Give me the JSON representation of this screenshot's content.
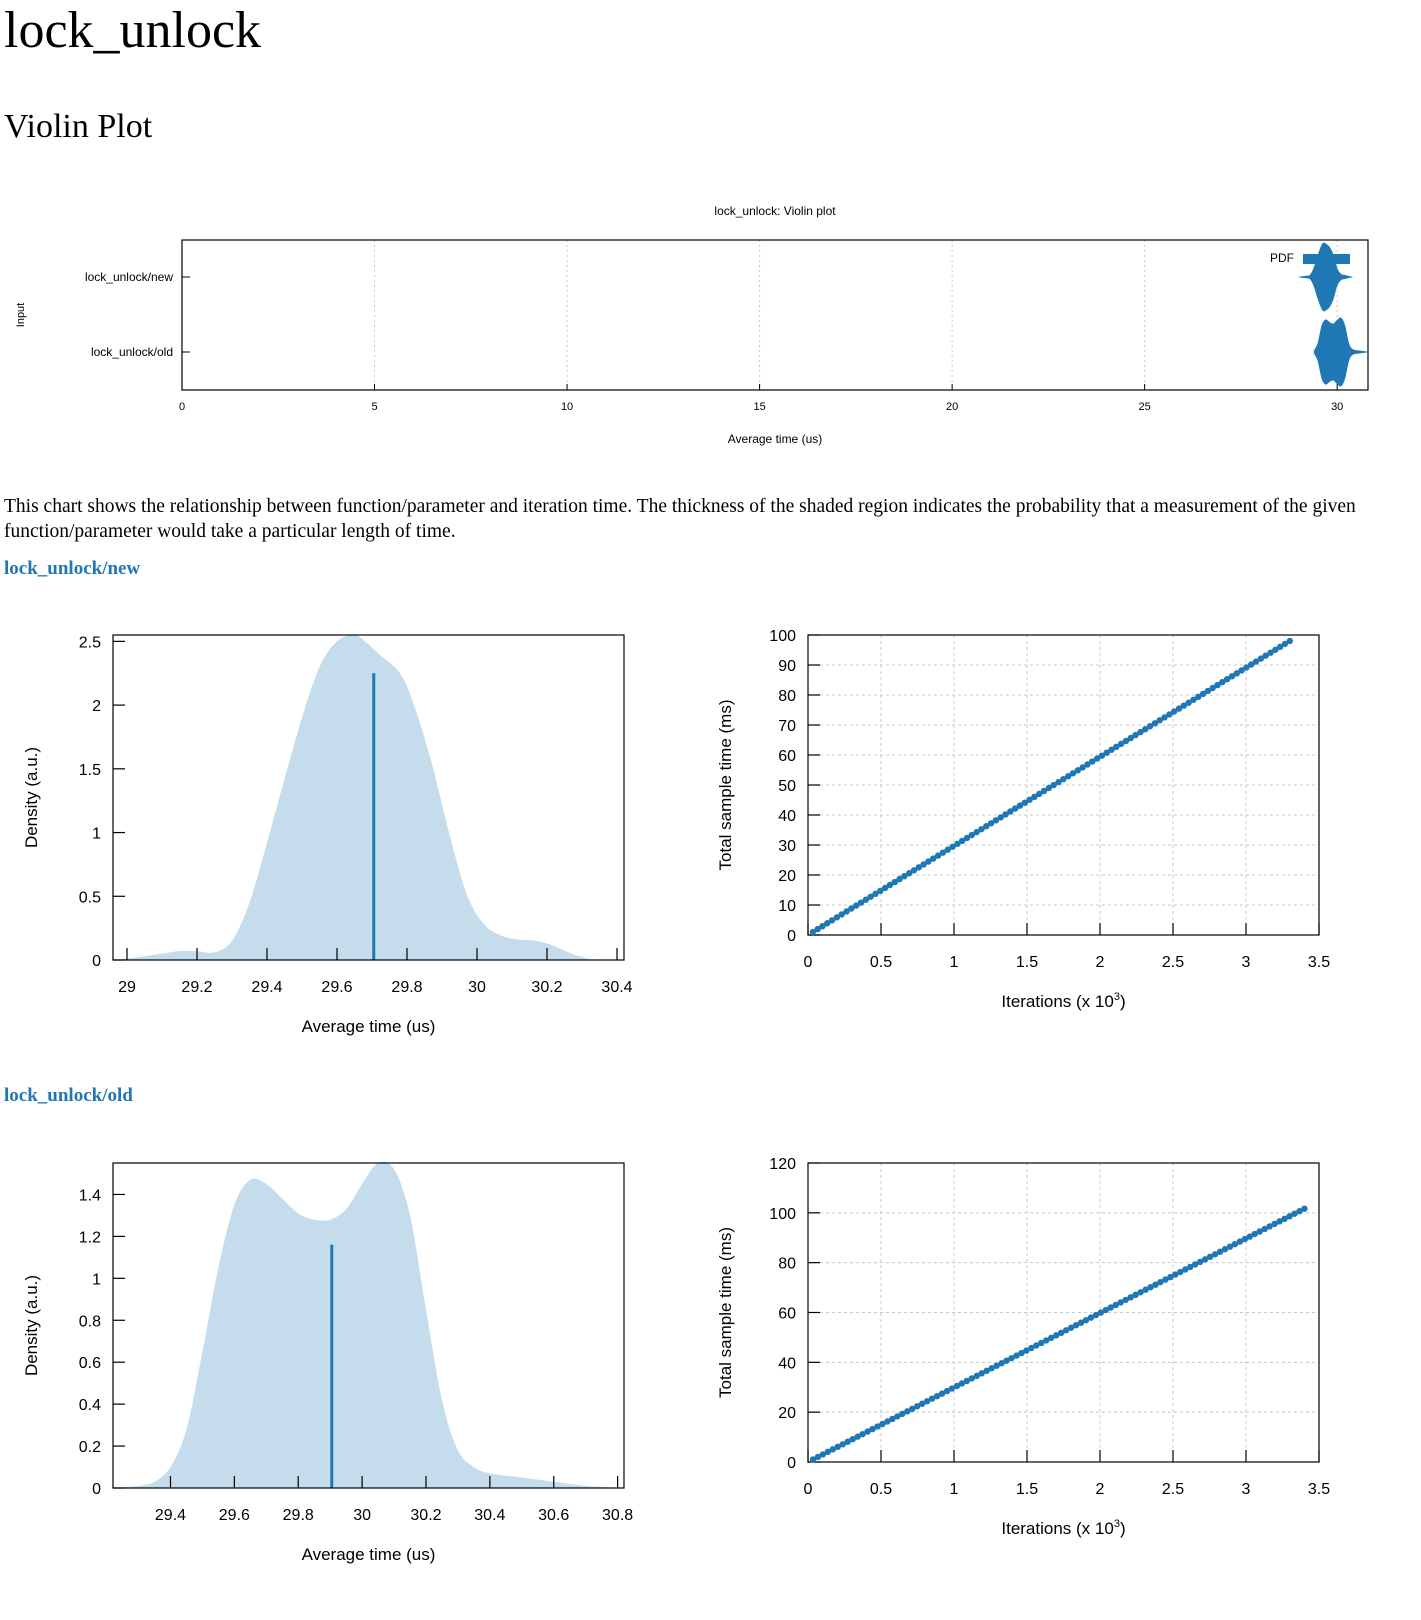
{
  "page": {
    "title": "lock_unlock",
    "section_title": "Violin Plot",
    "description": "This chart shows the relationship between function/parameter and iteration time. The thickness of the shaded region indicates the probability that a measurement of the given function/parameter would take a particular length of time."
  },
  "benchmarks": [
    {
      "name": "lock_unlock/new"
    },
    {
      "name": "lock_unlock/old"
    }
  ],
  "colors": {
    "series": "#1f78b4",
    "density_fill": "#c4dcec",
    "grid": "#c8c8c8",
    "link": "#1f78b4"
  },
  "chart_data": [
    {
      "id": "violin",
      "type": "violin",
      "title": "lock_unlock: Violin plot",
      "xlabel": "Average time (us)",
      "ylabel": "Input",
      "xlim": [
        0,
        30.8
      ],
      "xticks": [
        0,
        5,
        10,
        15,
        20,
        25,
        30
      ],
      "categories": [
        "lock_unlock/new",
        "lock_unlock/old"
      ],
      "legend": {
        "label": "PDF",
        "placement": "top-right"
      },
      "grid": "vertical dotted",
      "series": [
        {
          "category": "lock_unlock/new",
          "density_x": [
            29.0,
            29.2,
            29.3,
            29.4,
            29.5,
            29.6,
            29.65,
            29.7,
            29.8,
            29.9,
            30.0,
            30.1,
            30.2,
            30.3,
            30.4
          ],
          "density_y": [
            0.0,
            0.07,
            0.15,
            0.7,
            1.6,
            2.35,
            2.5,
            2.45,
            2.2,
            1.6,
            0.6,
            0.2,
            0.13,
            0.05,
            0.0
          ]
        },
        {
          "category": "lock_unlock/old",
          "density_x": [
            29.4,
            29.5,
            29.6,
            29.7,
            29.8,
            29.9,
            30.0,
            30.1,
            30.2,
            30.3,
            30.4,
            30.6,
            30.8
          ],
          "density_y": [
            0.05,
            0.4,
            1.2,
            1.47,
            1.35,
            1.28,
            1.45,
            1.55,
            1.2,
            0.4,
            0.12,
            0.05,
            0.0
          ]
        }
      ]
    },
    {
      "id": "pdf-new",
      "type": "area",
      "xlabel": "Average time (us)",
      "ylabel": "Density (a.u.)",
      "xlim": [
        28.96,
        30.42
      ],
      "ylim": [
        0,
        2.55
      ],
      "xticks": [
        29,
        29.2,
        29.4,
        29.6,
        29.8,
        30,
        30.2,
        30.4
      ],
      "yticks": [
        0,
        0.5,
        1,
        1.5,
        2,
        2.5
      ],
      "x": [
        28.96,
        29.0,
        29.1,
        29.15,
        29.2,
        29.25,
        29.3,
        29.35,
        29.4,
        29.45,
        29.5,
        29.55,
        29.6,
        29.65,
        29.68,
        29.72,
        29.78,
        29.82,
        29.87,
        29.92,
        29.97,
        30.02,
        30.07,
        30.12,
        30.17,
        30.22,
        30.27,
        30.32,
        30.36
      ],
      "y": [
        0.0,
        0.01,
        0.05,
        0.07,
        0.07,
        0.06,
        0.15,
        0.45,
        0.92,
        1.42,
        1.9,
        2.3,
        2.5,
        2.55,
        2.5,
        2.4,
        2.25,
        2.0,
        1.55,
        1.0,
        0.52,
        0.28,
        0.19,
        0.16,
        0.15,
        0.11,
        0.05,
        0.01,
        0.0
      ],
      "mean": {
        "x": 29.705,
        "y": 2.25
      }
    },
    {
      "id": "iter-new",
      "type": "scatter",
      "xlabel": "Iterations (x 10",
      "xlabel_sup": "3",
      "xlabel_end": ")",
      "ylabel": "Total sample time (ms)",
      "xlim": [
        0,
        3.5
      ],
      "ylim": [
        0,
        100
      ],
      "xticks": [
        0,
        0.5,
        1,
        1.5,
        2,
        2.5,
        3,
        3.5
      ],
      "yticks": [
        0,
        10,
        20,
        30,
        40,
        50,
        60,
        70,
        80,
        90,
        100
      ],
      "grid": true,
      "x_end": 3.3,
      "n_points": 100,
      "slope_ms_per_k_iter": 29.7,
      "endpoint": {
        "x": 3.3,
        "y": 98.5
      }
    },
    {
      "id": "pdf-old",
      "type": "area",
      "xlabel": "Average time (us)",
      "ylabel": "Density (a.u.)",
      "xlim": [
        29.22,
        30.82
      ],
      "ylim": [
        0,
        1.55
      ],
      "xticks": [
        29.4,
        29.6,
        29.8,
        30,
        30.2,
        30.4,
        30.6,
        30.8
      ],
      "yticks": [
        0,
        0.2,
        0.4,
        0.6,
        0.8,
        1,
        1.2,
        1.4
      ],
      "x": [
        29.22,
        29.3,
        29.35,
        29.4,
        29.45,
        29.5,
        29.55,
        29.6,
        29.65,
        29.7,
        29.75,
        29.8,
        29.85,
        29.9,
        29.95,
        30.0,
        30.05,
        30.1,
        30.15,
        30.2,
        30.25,
        30.3,
        30.35,
        30.4,
        30.5,
        30.6,
        30.7,
        30.82
      ],
      "y": [
        0.0,
        0.01,
        0.03,
        0.1,
        0.28,
        0.65,
        1.05,
        1.35,
        1.47,
        1.45,
        1.38,
        1.31,
        1.28,
        1.28,
        1.33,
        1.45,
        1.55,
        1.52,
        1.3,
        0.85,
        0.42,
        0.18,
        0.1,
        0.07,
        0.05,
        0.03,
        0.01,
        0.0
      ],
      "mean": {
        "x": 29.905,
        "y": 1.16
      }
    },
    {
      "id": "iter-old",
      "type": "scatter",
      "xlabel": "Iterations (x 10",
      "xlabel_sup": "3",
      "xlabel_end": ")",
      "ylabel": "Total sample time (ms)",
      "xlim": [
        0,
        3.5
      ],
      "ylim": [
        0,
        120
      ],
      "xticks": [
        0,
        0.5,
        1,
        1.5,
        2,
        2.5,
        3,
        3.5
      ],
      "yticks": [
        0,
        20,
        40,
        60,
        80,
        100,
        120
      ],
      "grid": true,
      "x_end": 3.4,
      "n_points": 100,
      "slope_ms_per_k_iter": 29.9,
      "endpoint": {
        "x": 3.4,
        "y": 101.5
      }
    }
  ]
}
